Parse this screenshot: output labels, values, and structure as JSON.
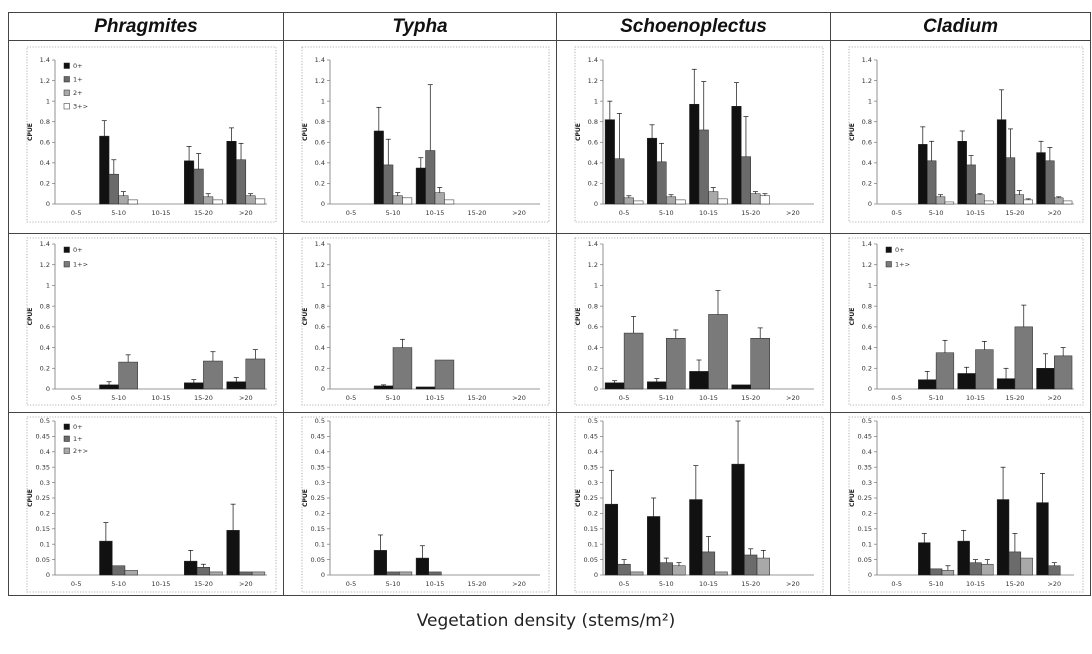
{
  "header": {
    "columns": [
      "Phragmites",
      "Typha",
      "Schoenoplectus",
      "Cladium"
    ]
  },
  "figure": {
    "xlabel": "Vegetation density (stems/m²)"
  },
  "chart_data": [
    {
      "type": "bar",
      "categories": [
        "0-5",
        "5-10",
        "10-15",
        "15-20",
        ">20"
      ],
      "ylabel": "CPUE",
      "ylim": [
        0,
        1.4
      ],
      "ytick_labels": [
        "0",
        "0.2",
        "0.4",
        "0.6",
        "0.8",
        "1",
        "1.2",
        "1.4"
      ],
      "grid": false,
      "legend": "top-left",
      "series": [
        {
          "name": "0+",
          "color": "#111111",
          "values": [
            0,
            0.66,
            0,
            0.42,
            0.61
          ],
          "errors": [
            0,
            0.15,
            0,
            0.14,
            0.13
          ]
        },
        {
          "name": "1+",
          "color": "#6b6b6b",
          "values": [
            0,
            0.29,
            0,
            0.34,
            0.43
          ],
          "errors": [
            0,
            0.14,
            0,
            0.15,
            0.16
          ]
        },
        {
          "name": "2+",
          "color": "#a9a9a9",
          "values": [
            0,
            0.08,
            0,
            0.07,
            0.08
          ],
          "errors": [
            0,
            0.04,
            0,
            0.03,
            0.02
          ]
        },
        {
          "name": "3+>",
          "color": "#ffffff",
          "values": [
            0,
            0.04,
            0,
            0.04,
            0.05
          ],
          "errors": [
            0,
            0,
            0,
            0,
            0
          ]
        }
      ]
    },
    {
      "type": "bar",
      "categories": [
        "0-5",
        "5-10",
        "10-15",
        "15-20",
        ">20"
      ],
      "ylabel": "CPUE",
      "ylim": [
        0,
        1.4
      ],
      "ytick_labels": [
        "0",
        "0.2",
        "0.4",
        "0.6",
        "0.8",
        "1",
        "1.2",
        "1.4"
      ],
      "grid": false,
      "series": [
        {
          "color": "#111111",
          "values": [
            0,
            0.71,
            0.35,
            0,
            0
          ],
          "errors": [
            0,
            0.23,
            0.1,
            0,
            0
          ]
        },
        {
          "color": "#6b6b6b",
          "values": [
            0,
            0.38,
            0.52,
            0,
            0
          ],
          "errors": [
            0,
            0.25,
            0.64,
            0,
            0
          ]
        },
        {
          "color": "#a9a9a9",
          "values": [
            0,
            0.08,
            0.11,
            0,
            0
          ],
          "errors": [
            0,
            0.03,
            0.05,
            0,
            0
          ]
        },
        {
          "color": "#ffffff",
          "values": [
            0,
            0.06,
            0.04,
            0,
            0
          ],
          "errors": [
            0,
            0,
            0,
            0,
            0
          ]
        }
      ]
    },
    {
      "type": "bar",
      "categories": [
        "0-5",
        "5-10",
        "10-15",
        "15-20",
        ">20"
      ],
      "ylabel": "CPUE",
      "ylim": [
        0,
        1.4
      ],
      "ytick_labels": [
        "0",
        "0.2",
        "0.4",
        "0.6",
        "0.8",
        "1",
        "1.2",
        "1.4"
      ],
      "grid": false,
      "series": [
        {
          "color": "#111111",
          "values": [
            0.82,
            0.64,
            0.97,
            0.95,
            0
          ],
          "errors": [
            0.18,
            0.13,
            0.34,
            0.23,
            0
          ]
        },
        {
          "color": "#6b6b6b",
          "values": [
            0.44,
            0.41,
            0.72,
            0.46,
            0
          ],
          "errors": [
            0.44,
            0.18,
            0.47,
            0.39,
            0
          ]
        },
        {
          "color": "#a9a9a9",
          "values": [
            0.06,
            0.07,
            0.12,
            0.1,
            0
          ],
          "errors": [
            0.02,
            0.02,
            0.04,
            0.02,
            0
          ]
        },
        {
          "color": "#ffffff",
          "values": [
            0.03,
            0.04,
            0.05,
            0.08,
            0
          ],
          "errors": [
            0,
            0,
            0,
            0.02,
            0
          ]
        }
      ]
    },
    {
      "type": "bar",
      "categories": [
        "0-5",
        "5-10",
        "10-15",
        "15-20",
        ">20"
      ],
      "ylabel": "CPUE",
      "ylim": [
        0,
        1.4
      ],
      "ytick_labels": [
        "0",
        "0.2",
        "0.4",
        "0.6",
        "0.8",
        "1",
        "1.2",
        "1.4"
      ],
      "grid": false,
      "series": [
        {
          "color": "#111111",
          "values": [
            0,
            0.58,
            0.61,
            0.82,
            0.5
          ],
          "errors": [
            0,
            0.17,
            0.1,
            0.29,
            0.11
          ]
        },
        {
          "color": "#6b6b6b",
          "values": [
            0,
            0.42,
            0.38,
            0.45,
            0.42
          ],
          "errors": [
            0,
            0.19,
            0.09,
            0.28,
            0.13
          ]
        },
        {
          "color": "#a9a9a9",
          "values": [
            0,
            0.07,
            0.09,
            0.09,
            0.06
          ],
          "errors": [
            0,
            0.02,
            0.01,
            0.04,
            0.01
          ]
        },
        {
          "color": "#ffffff",
          "values": [
            0,
            0.02,
            0.03,
            0.04,
            0.03
          ],
          "errors": [
            0,
            0,
            0,
            0.01,
            0
          ]
        }
      ]
    },
    {
      "type": "bar",
      "categories": [
        "0-5",
        "5-10",
        "10-15",
        "15-20",
        ">20"
      ],
      "ylabel": "CPUE",
      "ylim": [
        0,
        1.4
      ],
      "ytick_labels": [
        "0",
        "0.2",
        "0.4",
        "0.6",
        "0.8",
        "1",
        "1.2",
        "1.4"
      ],
      "grid": false,
      "legend": "top-left",
      "series": [
        {
          "name": "0+",
          "color": "#111111",
          "values": [
            0,
            0.04,
            0,
            0.06,
            0.07
          ],
          "errors": [
            0,
            0.03,
            0,
            0.03,
            0.04
          ]
        },
        {
          "name": "1+>",
          "color": "#7a7a7a",
          "values": [
            0,
            0.26,
            0,
            0.27,
            0.29
          ],
          "errors": [
            0,
            0.07,
            0,
            0.09,
            0.09
          ]
        }
      ]
    },
    {
      "type": "bar",
      "categories": [
        "0-5",
        "5-10",
        "10-15",
        "15-20",
        ">20"
      ],
      "ylabel": "CPUE",
      "ylim": [
        0,
        1.4
      ],
      "ytick_labels": [
        "0",
        "0.2",
        "0.4",
        "0.6",
        "0.8",
        "1",
        "1.2",
        "1.4"
      ],
      "grid": false,
      "series": [
        {
          "color": "#111111",
          "values": [
            0,
            0.03,
            0.02,
            0,
            0
          ],
          "errors": [
            0,
            0.01,
            0,
            0,
            0
          ]
        },
        {
          "color": "#7a7a7a",
          "values": [
            0,
            0.4,
            0.28,
            0,
            0
          ],
          "errors": [
            0,
            0.08,
            0,
            0,
            0
          ]
        }
      ]
    },
    {
      "type": "bar",
      "categories": [
        "0-5",
        "5-10",
        "10-15",
        "15-20",
        ">20"
      ],
      "ylabel": "CPUE",
      "ylim": [
        0,
        1.4
      ],
      "ytick_labels": [
        "0",
        "0.2",
        "0.4",
        "0.6",
        "0.8",
        "1",
        "1.2",
        "1.4"
      ],
      "grid": false,
      "series": [
        {
          "color": "#111111",
          "values": [
            0.06,
            0.07,
            0.17,
            0.04,
            0
          ],
          "errors": [
            0.02,
            0.03,
            0.11,
            0,
            0
          ]
        },
        {
          "color": "#7a7a7a",
          "values": [
            0.54,
            0.49,
            0.72,
            0.49,
            0
          ],
          "errors": [
            0.16,
            0.08,
            0.23,
            0.1,
            0
          ]
        }
      ]
    },
    {
      "type": "bar",
      "categories": [
        "0-5",
        "5-10",
        "10-15",
        "15-20",
        ">20"
      ],
      "ylabel": "CPUE",
      "ylim": [
        0,
        1.4
      ],
      "ytick_labels": [
        "0",
        "0.2",
        "0.4",
        "0.6",
        "0.8",
        "1",
        "1.2",
        "1.4"
      ],
      "grid": false,
      "legend": "top-left",
      "series": [
        {
          "name": "0+",
          "color": "#111111",
          "values": [
            0,
            0.09,
            0.15,
            0.1,
            0.2
          ],
          "errors": [
            0,
            0.08,
            0.06,
            0.1,
            0.14
          ]
        },
        {
          "name": "1+>",
          "color": "#7a7a7a",
          "values": [
            0,
            0.35,
            0.38,
            0.6,
            0.32
          ],
          "errors": [
            0,
            0.12,
            0.08,
            0.21,
            0.08
          ]
        }
      ]
    },
    {
      "type": "bar",
      "categories": [
        "0-5",
        "5-10",
        "10-15",
        "15-20",
        ">20"
      ],
      "ylabel": "CPUE",
      "ylim": [
        0,
        0.5
      ],
      "ytick_labels": [
        "0",
        "0.05",
        "0.1",
        "0.15",
        "0.2",
        "0.25",
        "0.3",
        "0.35",
        "0.4",
        "0.45",
        "0.5"
      ],
      "grid": false,
      "legend": "top-left",
      "series": [
        {
          "name": "0+",
          "color": "#111111",
          "values": [
            0,
            0.11,
            0,
            0.045,
            0.145
          ],
          "errors": [
            0,
            0.06,
            0,
            0.035,
            0.085
          ]
        },
        {
          "name": "1+",
          "color": "#6b6b6b",
          "values": [
            0,
            0.03,
            0,
            0.025,
            0.01
          ],
          "errors": [
            0,
            0,
            0,
            0.01,
            0
          ]
        },
        {
          "name": "2+>",
          "color": "#a9a9a9",
          "values": [
            0,
            0.015,
            0,
            0.01,
            0.01
          ],
          "errors": [
            0,
            0,
            0,
            0,
            0
          ]
        }
      ]
    },
    {
      "type": "bar",
      "categories": [
        "0-5",
        "5-10",
        "10-15",
        "15-20",
        ">20"
      ],
      "ylabel": "CPUE",
      "ylim": [
        0,
        0.5
      ],
      "ytick_labels": [
        "0",
        "0.05",
        "0.1",
        "0.15",
        "0.2",
        "0.25",
        "0.3",
        "0.35",
        "0.4",
        "0.45",
        "0.5"
      ],
      "grid": false,
      "series": [
        {
          "color": "#111111",
          "values": [
            0,
            0.08,
            0.055,
            0,
            0
          ],
          "errors": [
            0,
            0.05,
            0.04,
            0,
            0
          ]
        },
        {
          "color": "#6b6b6b",
          "values": [
            0,
            0.01,
            0.01,
            0,
            0
          ],
          "errors": [
            0,
            0,
            0,
            0,
            0
          ]
        },
        {
          "color": "#a9a9a9",
          "values": [
            0,
            0.01,
            0,
            0,
            0
          ],
          "errors": [
            0,
            0,
            0,
            0,
            0
          ]
        }
      ]
    },
    {
      "type": "bar",
      "categories": [
        "0-5",
        "5-10",
        "10-15",
        "15-20",
        ">20"
      ],
      "ylabel": "CPUE",
      "ylim": [
        0,
        0.5
      ],
      "ytick_labels": [
        "0",
        "0.05",
        "0.1",
        "0.15",
        "0.2",
        "0.25",
        "0.3",
        "0.35",
        "0.4",
        "0.45",
        "0.5"
      ],
      "grid": false,
      "series": [
        {
          "color": "#111111",
          "values": [
            0.23,
            0.19,
            0.245,
            0.36,
            0
          ],
          "errors": [
            0.11,
            0.06,
            0.11,
            0.14,
            0
          ]
        },
        {
          "color": "#6b6b6b",
          "values": [
            0.035,
            0.04,
            0.075,
            0.065,
            0
          ],
          "errors": [
            0.015,
            0.015,
            0.05,
            0.02,
            0
          ]
        },
        {
          "color": "#a9a9a9",
          "values": [
            0.01,
            0.03,
            0.01,
            0.055,
            0
          ],
          "errors": [
            0,
            0.01,
            0,
            0.025,
            0
          ]
        }
      ]
    },
    {
      "type": "bar",
      "categories": [
        "0-5",
        "5-10",
        "10-15",
        "15-20",
        ">20"
      ],
      "ylabel": "CPUE",
      "ylim": [
        0,
        0.5
      ],
      "ytick_labels": [
        "0",
        "0.05",
        "0.1",
        "0.15",
        "0.2",
        "0.25",
        "0.3",
        "0.35",
        "0.4",
        "0.45",
        "0.5"
      ],
      "grid": false,
      "series": [
        {
          "color": "#111111",
          "values": [
            0,
            0.105,
            0.11,
            0.245,
            0.235
          ],
          "errors": [
            0,
            0.03,
            0.035,
            0.105,
            0.095
          ]
        },
        {
          "color": "#6b6b6b",
          "values": [
            0,
            0.02,
            0.04,
            0.075,
            0.03
          ],
          "errors": [
            0,
            0,
            0.01,
            0.06,
            0.01
          ]
        },
        {
          "color": "#a9a9a9",
          "values": [
            0,
            0.015,
            0.035,
            0.055,
            0
          ],
          "errors": [
            0,
            0.015,
            0.015,
            0,
            0
          ]
        }
      ]
    }
  ]
}
